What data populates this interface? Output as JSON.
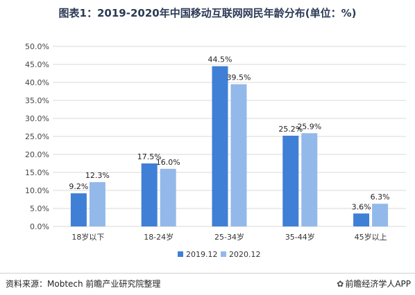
{
  "title": "图表1：2019-2020年中国移动互联网网民年龄分布(单位：%)",
  "footer": {
    "source": "资料来源：Mobtech 前瞻产业研究院整理",
    "brand": "前瞻经济学人APP",
    "brand_icon": "paw-logo-icon"
  },
  "colors": {
    "series1": "#3f7fd6",
    "series2": "#93b9ea",
    "grid": "#d9d9d9"
  },
  "chart_data": {
    "type": "bar",
    "title": "图表1：2019-2020年中国移动互联网网民年龄分布(单位：%)",
    "categories": [
      "18岁以下",
      "18-24岁",
      "25-34岁",
      "35-44岁",
      "45岁以上"
    ],
    "series": [
      {
        "name": "2019.12",
        "values": [
          9.2,
          17.5,
          44.5,
          25.2,
          3.6
        ],
        "labels": [
          "9.2%",
          "17.5%",
          "44.5%",
          "25.2%",
          "3.6%"
        ]
      },
      {
        "name": "2020.12",
        "values": [
          12.3,
          16.0,
          39.5,
          25.9,
          6.3
        ],
        "labels": [
          "12.3%",
          "16.0%",
          "39.5%",
          "25.9%",
          "6.3%"
        ]
      }
    ],
    "yticks": [
      "0.0%",
      "5.0%",
      "10.0%",
      "15.0%",
      "20.0%",
      "25.0%",
      "30.0%",
      "35.0%",
      "40.0%",
      "45.0%",
      "50.0%"
    ],
    "ylim": [
      0,
      50
    ],
    "grid": true,
    "legend": "bottom"
  }
}
